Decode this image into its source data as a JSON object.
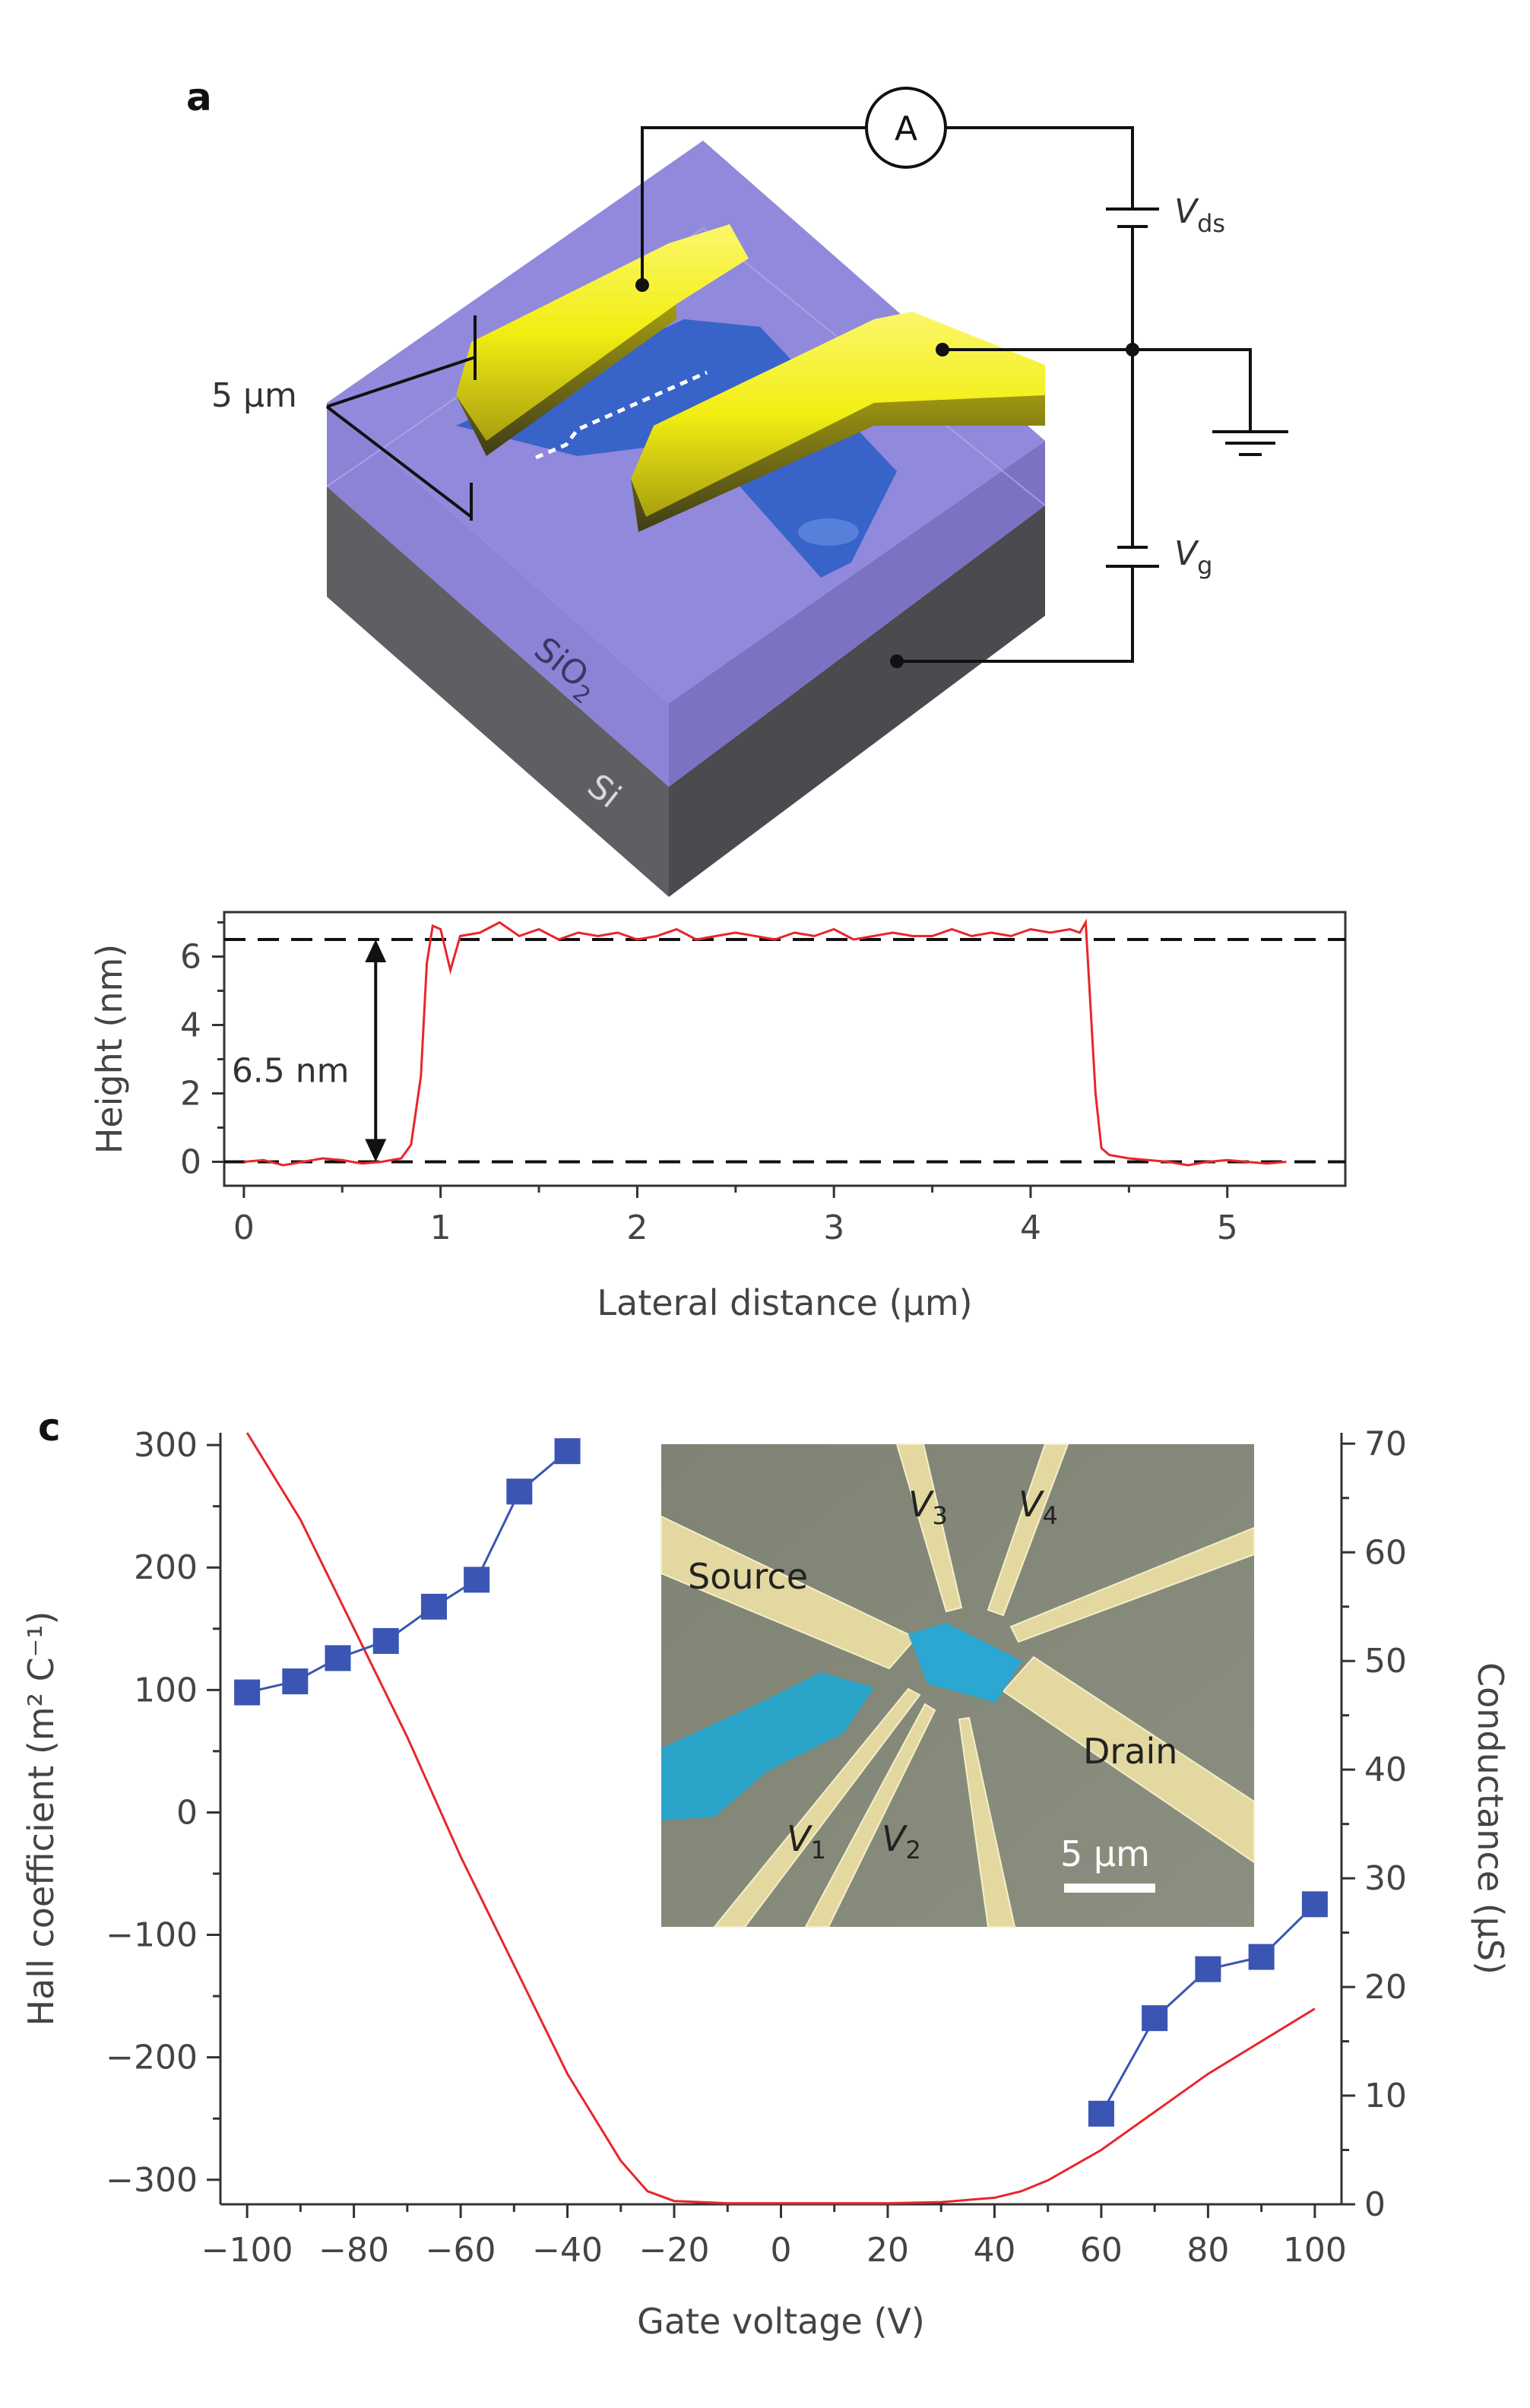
{
  "panels": {
    "a": "a",
    "c": "c"
  },
  "schematic": {
    "scale_label": "5 μm",
    "ammeter": "A",
    "vds": "V",
    "vds_sub": "ds",
    "vg": "V",
    "vg_sub": "g",
    "sio2": "SiO",
    "sio2_sub": "2",
    "si": "Si"
  },
  "colors": {
    "gold": "#f2ee12",
    "purple": "#8c83d6",
    "flake": "#2f5fc6",
    "si": "#5c5c5c",
    "red": "#e8262b",
    "blue_marker": "#3a55b3"
  },
  "chart_data": [
    {
      "type": "line",
      "xlabel": "Lateral distance (μm)",
      "ylabel": "Height (nm)",
      "xlim": [
        -0.1,
        5.6
      ],
      "ylim": [
        -0.7,
        7.3
      ],
      "xticks": [
        0,
        1,
        2,
        3,
        4,
        5
      ],
      "yticks": [
        0,
        2,
        4,
        6
      ],
      "annotation": "6.5 nm",
      "dashed_levels": [
        0,
        6.5
      ],
      "series": [
        {
          "x": [
            0.0,
            0.1,
            0.2,
            0.3,
            0.4,
            0.5,
            0.6,
            0.7,
            0.8,
            0.85,
            0.9,
            0.93,
            0.96,
            1.0,
            1.05,
            1.1,
            1.2,
            1.3,
            1.4,
            1.5,
            1.6,
            1.7,
            1.8,
            1.9,
            2.0,
            2.1,
            2.2,
            2.3,
            2.4,
            2.5,
            2.6,
            2.7,
            2.8,
            2.9,
            3.0,
            3.1,
            3.2,
            3.3,
            3.4,
            3.5,
            3.6,
            3.7,
            3.8,
            3.9,
            4.0,
            4.1,
            4.2,
            4.25,
            4.28,
            4.3,
            4.33,
            4.36,
            4.4,
            4.5,
            4.6,
            4.7,
            4.8,
            4.9,
            5.0,
            5.1,
            5.2,
            5.3
          ],
          "y": [
            0.0,
            0.05,
            -0.1,
            0.0,
            0.1,
            0.05,
            -0.05,
            0.0,
            0.1,
            0.5,
            2.5,
            5.8,
            6.9,
            6.8,
            5.6,
            6.6,
            6.7,
            7.0,
            6.6,
            6.8,
            6.5,
            6.7,
            6.6,
            6.7,
            6.5,
            6.6,
            6.8,
            6.5,
            6.6,
            6.7,
            6.6,
            6.5,
            6.7,
            6.6,
            6.8,
            6.5,
            6.6,
            6.7,
            6.6,
            6.6,
            6.8,
            6.6,
            6.7,
            6.6,
            6.8,
            6.7,
            6.8,
            6.7,
            7.0,
            5.0,
            2.0,
            0.4,
            0.2,
            0.1,
            0.05,
            0.0,
            -0.1,
            0.0,
            0.05,
            0.0,
            -0.05,
            0.0
          ]
        }
      ]
    },
    {
      "type": "scatter",
      "xlabel": "Gate voltage (V)",
      "ylabel": "Hall coefficient (m² C⁻¹)",
      "y2label": "Conductance (μS)",
      "xlim": [
        -105,
        105
      ],
      "ylim": [
        -320,
        310
      ],
      "y2lim": [
        0,
        71
      ],
      "xticks": [
        -100,
        -80,
        -60,
        -40,
        -20,
        0,
        20,
        40,
        60,
        80,
        100
      ],
      "yticks": [
        300,
        200,
        100,
        0,
        -100,
        -200,
        -300
      ],
      "y2ticks": [
        0,
        10,
        20,
        30,
        40,
        50,
        60,
        70
      ],
      "series": [
        {
          "name": "",
          "axis": "left",
          "x": [
            -100,
            -91,
            -83,
            -74,
            -65,
            -57,
            -49,
            -40
          ],
          "y": [
            98,
            107,
            126,
            140,
            168,
            190,
            262,
            295
          ]
        },
        {
          "name": "",
          "axis": "left",
          "x": [
            60,
            70,
            80,
            90,
            100
          ],
          "y": [
            -246,
            -168,
            -128,
            -118,
            -75
          ]
        },
        {
          "name": "",
          "axis": "right",
          "x": [
            -100,
            -90,
            -80,
            -70,
            -60,
            -50,
            -40,
            -30,
            -25,
            -20,
            -10,
            0,
            10,
            20,
            30,
            40,
            45,
            50,
            60,
            70,
            80,
            90,
            100
          ],
          "y": [
            71,
            63,
            53,
            43,
            32,
            22,
            12,
            4,
            1.2,
            0.3,
            0.1,
            0.1,
            0.1,
            0.1,
            0.2,
            0.6,
            1.2,
            2.2,
            5.0,
            8.5,
            12.0,
            15.0,
            18.0
          ]
        }
      ],
      "inset": {
        "source": "Source",
        "drain": "Drain",
        "v1": "V",
        "v1_sub": "1",
        "v2": "V",
        "v2_sub": "2",
        "v3": "V",
        "v3_sub": "3",
        "v4": "V",
        "v4_sub": "4",
        "scale": "5 μm"
      }
    }
  ]
}
